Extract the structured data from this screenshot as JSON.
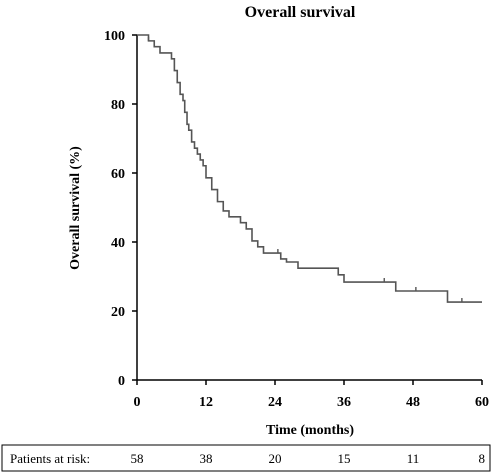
{
  "chart_data": {
    "type": "line",
    "title": "Overall survival",
    "xlabel": "Time (months)",
    "ylabel": "Overall survival (%)",
    "xlim": [
      0,
      60
    ],
    "ylim": [
      0,
      100
    ],
    "x_ticks": [
      "0",
      "12",
      "24",
      "36",
      "48",
      "60"
    ],
    "y_ticks": [
      "0",
      "20",
      "40",
      "60",
      "80",
      "100"
    ],
    "grid": false,
    "series": [
      {
        "x": [
          0,
          2,
          3,
          4,
          6,
          6.5,
          7,
          7.5,
          8,
          8.3,
          8.7,
          9,
          9.5,
          10,
          10.5,
          11,
          11.5,
          12,
          13,
          14,
          15,
          16,
          18,
          19,
          20,
          21,
          22,
          23,
          25,
          26,
          28,
          33,
          35,
          36,
          45,
          54,
          56,
          60
        ],
        "y": [
          100,
          98.3,
          96.6,
          94.8,
          93.1,
          89.7,
          86.2,
          82.8,
          81.0,
          77.6,
          74.1,
          72.4,
          69.0,
          67.2,
          65.5,
          63.8,
          62.1,
          58.6,
          55.2,
          51.7,
          49.0,
          47.3,
          45.6,
          43.8,
          40.3,
          38.6,
          36.8,
          36.8,
          35.1,
          34.2,
          32.4,
          32.4,
          30.5,
          28.4,
          25.8,
          22.6,
          22.6,
          22.6
        ]
      }
    ],
    "censor_marks": [
      {
        "x": 2.0,
        "y": 98.3
      },
      {
        "x": 24.5,
        "y": 36.8
      },
      {
        "x": 43,
        "y": 28.4
      },
      {
        "x": 48.5,
        "y": 25.8
      },
      {
        "x": 56.5,
        "y": 22.6
      }
    ]
  },
  "risk_table": {
    "label": "Patients at risk:",
    "values": [
      "58",
      "38",
      "20",
      "15",
      "11",
      "8"
    ]
  }
}
